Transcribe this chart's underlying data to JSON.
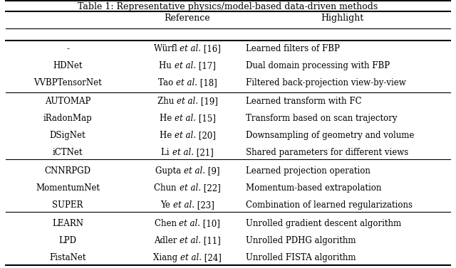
{
  "title": "Table 1: Representative physics/model-based data-driven methods",
  "groups": [
    {
      "methods": [
        "-",
        "HDNet",
        "VVBPTensorNet"
      ],
      "references": [
        [
          "Würfl ",
          "et al.",
          " [16]"
        ],
        [
          "Hu ",
          "et al.",
          " [17]"
        ],
        [
          "Tao ",
          "et al.",
          " [18]"
        ]
      ],
      "highlights": [
        "Learned filters of FBP",
        "Dual domain processing with FBP",
        "Filtered back-projection view-by-view"
      ]
    },
    {
      "methods": [
        "AUTOMAP",
        "iRadonMap",
        "DSigNet",
        "iCTNet"
      ],
      "references": [
        [
          "Zhu ",
          "et al.",
          " [19]"
        ],
        [
          "He ",
          "et al.",
          " [15]"
        ],
        [
          "He ",
          "et al.",
          " [20]"
        ],
        [
          "Li ",
          "et al.",
          " [21]"
        ]
      ],
      "highlights": [
        "Learned transform with FC",
        "Transform based on scan trajectory",
        "Downsampling of geometry and volume",
        "Shared parameters for different views"
      ]
    },
    {
      "methods": [
        "CNNRPGD",
        "MomentumNet",
        "SUPER"
      ],
      "references": [
        [
          "Gupta ",
          "et al.",
          " [9]"
        ],
        [
          "Chun ",
          "et al.",
          " [22]"
        ],
        [
          "Ye ",
          "et al.",
          " [23]"
        ]
      ],
      "highlights": [
        "Learned projection operation",
        "Momentum-based extrapolation",
        "Combination of learned regularizations"
      ]
    },
    {
      "methods": [
        "LEARN",
        "LPD",
        "FistaNet"
      ],
      "references": [
        [
          "Chen ",
          "et al.",
          " [10]"
        ],
        [
          "Adler ",
          "et al.",
          " [11]"
        ],
        [
          "Xiang ",
          "et al.",
          " [24]"
        ]
      ],
      "highlights": [
        "Unrolled gradient descent algorithm",
        "Unrolled PDHG algorithm",
        "Unrolled FISTA algorithm"
      ]
    }
  ],
  "background_color": "#ffffff",
  "text_color": "#000000",
  "font_size": 8.5,
  "header_font_size": 9.0,
  "title_font_size": 9.0
}
